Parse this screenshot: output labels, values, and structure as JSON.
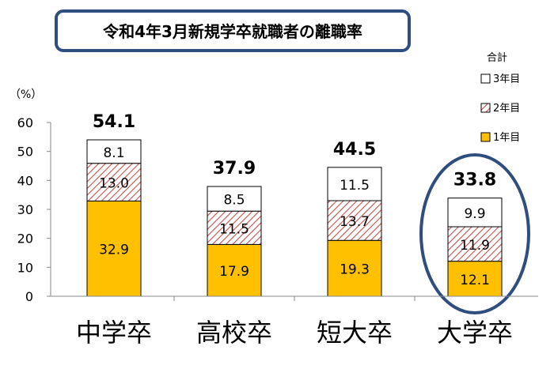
{
  "chart_data": {
    "type": "bar",
    "stacked": true,
    "title": "令和4年3月新規学卒就職者の離職率",
    "unit_label": "（%）",
    "legend_title": "合計",
    "legend_position": "top-right",
    "categories": [
      "中学卒",
      "高校卒",
      "短大卒",
      "大学卒"
    ],
    "series": [
      {
        "name": "1年目",
        "values": [
          32.9,
          17.9,
          19.3,
          12.1
        ],
        "color": "#FFC000",
        "pattern": "solid"
      },
      {
        "name": "2年目",
        "values": [
          13.0,
          11.5,
          13.7,
          11.9
        ],
        "color": "#C0504D",
        "pattern": "diagonal-hatch"
      },
      {
        "name": "3年目",
        "values": [
          8.1,
          8.5,
          11.5,
          9.9
        ],
        "color": "#ffffff",
        "pattern": "solid"
      }
    ],
    "totals": [
      54.1,
      37.9,
      44.5,
      33.8
    ],
    "ylim": [
      0,
      60
    ],
    "yticks": [
      0,
      10,
      20,
      30,
      40,
      50,
      60
    ],
    "highlight": {
      "category": "大学卒",
      "shape": "ellipse",
      "color": "#2F4D7E"
    },
    "grid": false
  }
}
